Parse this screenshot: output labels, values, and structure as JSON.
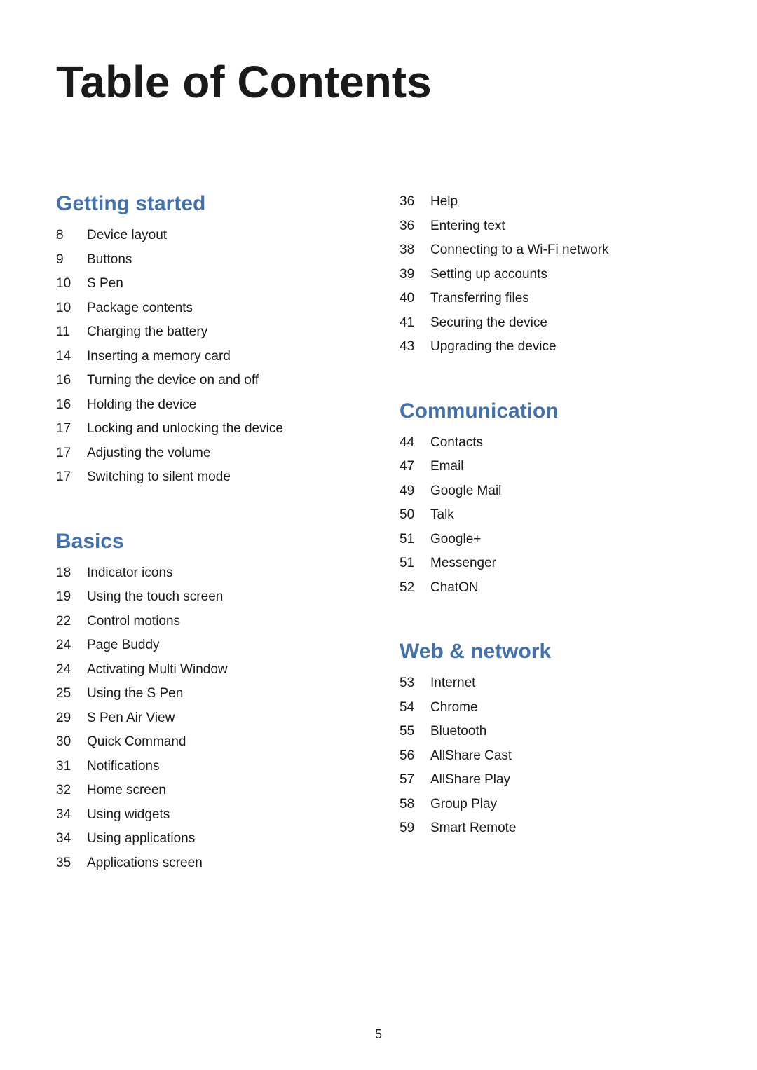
{
  "title": "Table of Contents",
  "pageNumber": "5",
  "colors": {
    "heading": "#4472a8",
    "text": "#1a1a1a",
    "background": "#ffffff"
  },
  "typography": {
    "title_fontsize": 64,
    "heading_fontsize": 30,
    "body_fontsize": 19,
    "footer_fontsize": 18
  },
  "leftColumn": {
    "sections": [
      {
        "heading": "Getting started",
        "spaced": false,
        "items": [
          {
            "page": "8",
            "text": "Device layout"
          },
          {
            "page": "9",
            "text": "Buttons"
          },
          {
            "page": "10",
            "text": "S Pen"
          },
          {
            "page": "10",
            "text": "Package contents"
          },
          {
            "page": "11",
            "text": "Charging the battery"
          },
          {
            "page": "14",
            "text": "Inserting a memory card"
          },
          {
            "page": "16",
            "text": "Turning the device on and off"
          },
          {
            "page": "16",
            "text": "Holding the device"
          },
          {
            "page": "17",
            "text": "Locking and unlocking the device"
          },
          {
            "page": "17",
            "text": "Adjusting the volume"
          },
          {
            "page": "17",
            "text": "Switching to silent mode"
          }
        ]
      },
      {
        "heading": "Basics",
        "spaced": true,
        "items": [
          {
            "page": "18",
            "text": "Indicator icons"
          },
          {
            "page": "19",
            "text": "Using the touch screen"
          },
          {
            "page": "22",
            "text": "Control motions"
          },
          {
            "page": "24",
            "text": "Page Buddy"
          },
          {
            "page": "24",
            "text": "Activating Multi Window"
          },
          {
            "page": "25",
            "text": "Using the S Pen"
          },
          {
            "page": "29",
            "text": "S Pen Air View"
          },
          {
            "page": "30",
            "text": "Quick Command"
          },
          {
            "page": "31",
            "text": "Notifications"
          },
          {
            "page": "32",
            "text": "Home screen"
          },
          {
            "page": "34",
            "text": "Using widgets"
          },
          {
            "page": "34",
            "text": "Using applications"
          },
          {
            "page": "35",
            "text": "Applications screen"
          }
        ]
      }
    ]
  },
  "rightColumn": {
    "sections": [
      {
        "heading": "",
        "spaced": false,
        "items": [
          {
            "page": "36",
            "text": "Help"
          },
          {
            "page": "36",
            "text": "Entering text"
          },
          {
            "page": "38",
            "text": "Connecting to a Wi-Fi network"
          },
          {
            "page": "39",
            "text": "Setting up accounts"
          },
          {
            "page": "40",
            "text": "Transferring files"
          },
          {
            "page": "41",
            "text": "Securing the device"
          },
          {
            "page": "43",
            "text": "Upgrading the device"
          }
        ]
      },
      {
        "heading": "Communication",
        "spaced": true,
        "items": [
          {
            "page": "44",
            "text": "Contacts"
          },
          {
            "page": "47",
            "text": "Email"
          },
          {
            "page": "49",
            "text": "Google Mail"
          },
          {
            "page": "50",
            "text": "Talk"
          },
          {
            "page": "51",
            "text": "Google+"
          },
          {
            "page": "51",
            "text": "Messenger"
          },
          {
            "page": "52",
            "text": "ChatON"
          }
        ]
      },
      {
        "heading": "Web & network",
        "spaced": true,
        "items": [
          {
            "page": "53",
            "text": "Internet"
          },
          {
            "page": "54",
            "text": "Chrome"
          },
          {
            "page": "55",
            "text": "Bluetooth"
          },
          {
            "page": "56",
            "text": "AllShare Cast"
          },
          {
            "page": "57",
            "text": "AllShare Play"
          },
          {
            "page": "58",
            "text": "Group Play"
          },
          {
            "page": "59",
            "text": "Smart Remote"
          }
        ]
      }
    ]
  }
}
